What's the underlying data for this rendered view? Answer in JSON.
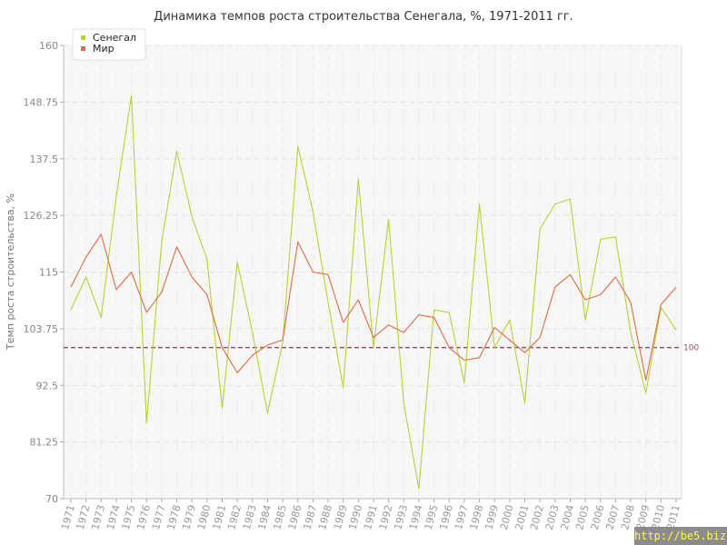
{
  "chart_data": {
    "type": "line",
    "title": "Динамика темпов роста строительства Сенегала, %, 1971-2011 гг.",
    "xlabel": "",
    "ylabel": "Темп роста строительства, %",
    "ylim": [
      70,
      160
    ],
    "yticks": [
      "70",
      "81.25",
      "92.5",
      "103.75",
      "115",
      "126.25",
      "137.5",
      "148.75",
      "160"
    ],
    "grid": true,
    "legend_position": "top-left",
    "reference_line": {
      "value": 100,
      "label": "100",
      "color": "#a0506a"
    },
    "x": [
      "1971",
      "1972",
      "1973",
      "1974",
      "1975",
      "1976",
      "1977",
      "1978",
      "1979",
      "1980",
      "1981",
      "1982",
      "1983",
      "1984",
      "1985",
      "1986",
      "1987",
      "1988",
      "1989",
      "1990",
      "1991",
      "1992",
      "1993",
      "1994",
      "1995",
      "1996",
      "1997",
      "1998",
      "1999",
      "2000",
      "2001",
      "2002",
      "2003",
      "2004",
      "2005",
      "2006",
      "2007",
      "2008",
      "2009",
      "2010",
      "2011"
    ],
    "series": [
      {
        "name": "Сенегал",
        "color": "#b5d334",
        "values": [
          107.5,
          114,
          106,
          130,
          150,
          85,
          121,
          139,
          126,
          117.5,
          88,
          117,
          103,
          87,
          101,
          140,
          127,
          109,
          92,
          133.5,
          100,
          125.5,
          89,
          72,
          107.5,
          107,
          93,
          128.5,
          100,
          105.5,
          89,
          123.5,
          128.5,
          129.5,
          105.5,
          121.5,
          122,
          103,
          91,
          108,
          103.5
        ]
      },
      {
        "name": "Мир",
        "color": "#e26b3e",
        "values": [
          112,
          118,
          122.5,
          111.5,
          115,
          107,
          111,
          120,
          114,
          110.5,
          100,
          95,
          98.5,
          100.5,
          101.5,
          121,
          115,
          114.5,
          105,
          109.5,
          102,
          104.5,
          103,
          106.5,
          106,
          100,
          97.5,
          98,
          104,
          101.5,
          99,
          102,
          112,
          114.5,
          109.5,
          110.5,
          114,
          109,
          93.5,
          108.5,
          112
        ]
      }
    ]
  },
  "watermark": "http://be5.biz/"
}
